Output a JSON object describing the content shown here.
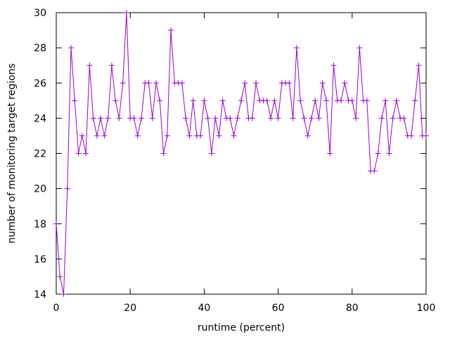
{
  "chart_data": {
    "type": "line",
    "title": "",
    "xlabel": "runtime (percent)",
    "ylabel": "number of monitoring target regions",
    "xlim": [
      0,
      100
    ],
    "ylim": [
      14,
      30
    ],
    "xticks": [
      0,
      20,
      40,
      60,
      80,
      100
    ],
    "yticks": [
      14,
      16,
      18,
      20,
      22,
      24,
      26,
      28,
      30
    ],
    "grid": false,
    "legend": "none",
    "marker": "plus",
    "series": [
      {
        "color": "#9400d3",
        "x": [
          0,
          1,
          2,
          3,
          4,
          5,
          6,
          7,
          8,
          9,
          10,
          11,
          12,
          13,
          14,
          15,
          16,
          17,
          18,
          19,
          20,
          21,
          22,
          23,
          24,
          25,
          26,
          27,
          28,
          29,
          30,
          31,
          32,
          33,
          34,
          35,
          36,
          37,
          38,
          39,
          40,
          41,
          42,
          43,
          44,
          45,
          46,
          47,
          48,
          49,
          50,
          51,
          52,
          53,
          54,
          55,
          56,
          57,
          58,
          59,
          60,
          61,
          62,
          63,
          64,
          65,
          66,
          67,
          68,
          69,
          70,
          71,
          72,
          73,
          74,
          75,
          76,
          77,
          78,
          79,
          80,
          81,
          82,
          83,
          84,
          85,
          86,
          87,
          88,
          89,
          90,
          91,
          92,
          93,
          94,
          95,
          96,
          97,
          98,
          99,
          100
        ],
        "y": [
          18,
          15,
          14,
          20,
          28,
          25,
          22,
          23,
          22,
          27,
          24,
          23,
          24,
          23,
          24,
          27,
          25,
          24,
          26,
          30,
          24,
          24,
          23,
          24,
          26,
          26,
          24,
          26,
          25,
          22,
          23,
          29,
          26,
          26,
          26,
          24,
          23,
          25,
          23,
          23,
          25,
          24,
          22,
          24,
          23,
          25,
          24,
          24,
          23,
          24,
          25,
          26,
          24,
          24,
          26,
          25,
          25,
          25,
          24,
          25,
          24,
          26,
          26,
          26,
          24,
          28,
          25,
          24,
          23,
          24,
          25,
          24,
          26,
          25,
          22,
          27,
          25,
          25,
          26,
          25,
          25,
          24,
          28,
          25,
          25,
          21,
          21,
          22,
          24,
          25,
          22,
          24,
          25,
          24,
          24,
          23,
          23,
          25,
          27,
          23,
          23
        ]
      }
    ]
  }
}
